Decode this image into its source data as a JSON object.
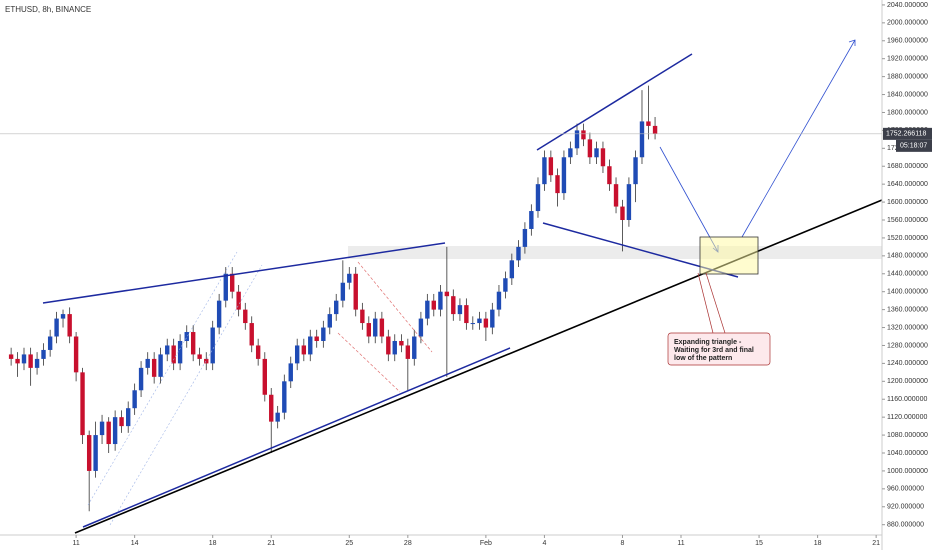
{
  "chart_data": {
    "type": "candlestick",
    "title": "ETHUSD, 8h, BINANCE",
    "x": [
      7.67,
      8,
      8.33,
      8.67,
      9,
      9.33,
      9.67,
      10,
      10.33,
      10.67,
      11,
      11.33,
      11.67,
      12,
      12.33,
      12.67,
      13,
      13.33,
      13.67,
      14,
      14.33,
      14.67,
      15,
      15.33,
      15.67,
      16,
      16.33,
      16.67,
      17,
      17.33,
      17.67,
      18,
      18.33,
      18.67,
      19,
      19.33,
      19.67,
      20,
      20.33,
      20.67,
      21,
      21.33,
      21.67,
      22,
      22.33,
      22.67,
      23,
      23.33,
      23.67,
      24,
      24.33,
      24.67,
      25,
      25.33,
      25.67,
      26,
      26.33,
      26.67,
      27,
      27.33,
      27.67,
      28,
      28.33,
      28.67,
      29,
      29.33,
      29.67,
      30,
      30.33,
      30.67,
      31,
      31.33,
      31.67,
      32,
      32.33,
      32.67,
      33,
      33.33,
      33.67,
      34,
      34.33,
      34.67,
      35,
      35.33,
      35.67,
      36,
      36.33,
      36.67,
      37,
      37.33,
      37.67,
      38,
      38.33,
      38.67,
      39,
      39.33,
      39.67,
      40,
      40.33,
      40.67
    ],
    "open": [
      1260,
      1250,
      1240,
      1260,
      1230,
      1250,
      1270,
      1300,
      1340,
      1350,
      1300,
      1220,
      1080,
      1000,
      1080,
      1110,
      1060,
      1120,
      1100,
      1140,
      1180,
      1230,
      1250,
      1210,
      1260,
      1280,
      1240,
      1290,
      1310,
      1260,
      1250,
      1240,
      1320,
      1380,
      1440,
      1400,
      1360,
      1330,
      1280,
      1250,
      1170,
      1110,
      1130,
      1200,
      1240,
      1280,
      1260,
      1300,
      1290,
      1320,
      1350,
      1380,
      1420,
      1440,
      1360,
      1330,
      1300,
      1340,
      1300,
      1260,
      1290,
      1280,
      1250,
      1300,
      1340,
      1380,
      1360,
      1400,
      1390,
      1350,
      1370,
      1330,
      1330,
      1340,
      1320,
      1360,
      1400,
      1430,
      1470,
      1500,
      1540,
      1580,
      1640,
      1700,
      1660,
      1620,
      1700,
      1720,
      1760,
      1740,
      1700,
      1720,
      1680,
      1640,
      1590,
      1560,
      1640,
      1700,
      1780,
      1770
    ],
    "high": [
      1275,
      1265,
      1275,
      1275,
      1265,
      1285,
      1315,
      1355,
      1360,
      1365,
      1310,
      1230,
      1090,
      1110,
      1125,
      1120,
      1135,
      1135,
      1155,
      1195,
      1245,
      1265,
      1265,
      1275,
      1295,
      1295,
      1305,
      1325,
      1325,
      1275,
      1265,
      1335,
      1395,
      1455,
      1455,
      1415,
      1375,
      1345,
      1295,
      1265,
      1185,
      1145,
      1215,
      1255,
      1295,
      1295,
      1315,
      1315,
      1335,
      1365,
      1395,
      1470,
      1455,
      1455,
      1375,
      1345,
      1355,
      1355,
      1315,
      1305,
      1305,
      1295,
      1315,
      1355,
      1395,
      1395,
      1415,
      1500,
      1405,
      1385,
      1385,
      1345,
      1355,
      1355,
      1375,
      1415,
      1445,
      1485,
      1515,
      1555,
      1595,
      1655,
      1715,
      1715,
      1675,
      1715,
      1735,
      1775,
      1775,
      1755,
      1735,
      1735,
      1695,
      1655,
      1605,
      1655,
      1715,
      1850,
      1860,
      1790
    ],
    "low": [
      1235,
      1210,
      1225,
      1190,
      1215,
      1235,
      1255,
      1285,
      1320,
      1285,
      1200,
      1060,
      910,
      985,
      1060,
      1040,
      1045,
      1085,
      1085,
      1125,
      1165,
      1215,
      1195,
      1195,
      1245,
      1225,
      1225,
      1275,
      1245,
      1235,
      1225,
      1225,
      1305,
      1365,
      1385,
      1345,
      1315,
      1265,
      1235,
      1155,
      1040,
      1095,
      1115,
      1185,
      1225,
      1245,
      1245,
      1275,
      1275,
      1305,
      1335,
      1365,
      1405,
      1345,
      1315,
      1285,
      1285,
      1285,
      1245,
      1245,
      1265,
      1180,
      1235,
      1285,
      1325,
      1345,
      1345,
      1210,
      1335,
      1335,
      1315,
      1315,
      1315,
      1290,
      1305,
      1345,
      1385,
      1415,
      1455,
      1485,
      1525,
      1565,
      1625,
      1645,
      1590,
      1605,
      1685,
      1705,
      1725,
      1685,
      1685,
      1665,
      1625,
      1575,
      1490,
      1545,
      1600,
      1685,
      1740,
      1740
    ],
    "close": [
      1250,
      1240,
      1260,
      1230,
      1250,
      1270,
      1300,
      1340,
      1350,
      1300,
      1220,
      1080,
      1000,
      1080,
      1110,
      1060,
      1120,
      1100,
      1140,
      1180,
      1230,
      1250,
      1210,
      1260,
      1280,
      1240,
      1290,
      1310,
      1260,
      1250,
      1240,
      1320,
      1380,
      1440,
      1400,
      1360,
      1330,
      1280,
      1250,
      1170,
      1110,
      1130,
      1200,
      1240,
      1280,
      1260,
      1300,
      1290,
      1320,
      1350,
      1380,
      1420,
      1440,
      1360,
      1330,
      1300,
      1340,
      1300,
      1260,
      1290,
      1280,
      1250,
      1300,
      1340,
      1380,
      1360,
      1400,
      1390,
      1350,
      1370,
      1330,
      1330,
      1340,
      1320,
      1360,
      1400,
      1430,
      1470,
      1500,
      1540,
      1580,
      1640,
      1700,
      1660,
      1620,
      1700,
      1720,
      1760,
      1740,
      1700,
      1720,
      1680,
      1640,
      1590,
      1560,
      1640,
      1700,
      1780,
      1770,
      1752
    ],
    "up_color": "#1f4bb5",
    "down_color": "#c8102e",
    "ylim": [
      857,
      2051
    ],
    "yticks": [
      {
        "value": 880,
        "label": "880.000000"
      },
      {
        "value": 920,
        "label": "920.000000"
      },
      {
        "value": 960,
        "label": "960.000000"
      },
      {
        "value": 1000,
        "label": "1000.000000"
      },
      {
        "value": 1040,
        "label": "1040.000000"
      },
      {
        "value": 1080,
        "label": "1080.000000"
      },
      {
        "value": 1120,
        "label": "1120.000000"
      },
      {
        "value": 1160,
        "label": "1160.000000"
      },
      {
        "value": 1200,
        "label": "1200.000000"
      },
      {
        "value": 1240,
        "label": "1240.000000"
      },
      {
        "value": 1280,
        "label": "1280.000000"
      },
      {
        "value": 1320,
        "label": "1320.000000"
      },
      {
        "value": 1360,
        "label": "1360.000000"
      },
      {
        "value": 1400,
        "label": "1400.000000"
      },
      {
        "value": 1440,
        "label": "1440.000000"
      },
      {
        "value": 1480,
        "label": "1480.000000"
      },
      {
        "value": 1520,
        "label": "1520.000000"
      },
      {
        "value": 1560,
        "label": "1560.000000"
      },
      {
        "value": 1600,
        "label": "1600.000000"
      },
      {
        "value": 1640,
        "label": "1640.000000"
      },
      {
        "value": 1680,
        "label": "1680.000000"
      },
      {
        "value": 1720,
        "label": "1720.000000"
      },
      {
        "value": 1760,
        "label": "1760.000000"
      },
      {
        "value": 1800,
        "label": "1800.000000"
      },
      {
        "value": 1840,
        "label": "1840.000000"
      },
      {
        "value": 1880,
        "label": "1880.000000"
      },
      {
        "value": 1920,
        "label": "1920.000000"
      },
      {
        "value": 1960,
        "label": "1960.000000"
      },
      {
        "value": 2000,
        "label": "2000.000000"
      },
      {
        "value": 2040,
        "label": "2040.000000"
      }
    ],
    "xlim": [
      7.1,
      52.3
    ],
    "xticks": [
      11,
      14,
      18,
      21,
      25,
      28,
      {
        "value": 32,
        "label": "Feb"
      },
      {
        "value": 35,
        "label": "4"
      },
      {
        "value": 39,
        "label": "8"
      },
      {
        "value": 42,
        "label": "11"
      },
      {
        "value": 46,
        "label": "15"
      },
      {
        "value": 49,
        "label": "18"
      },
      {
        "value": 52,
        "label": "21"
      }
    ],
    "last_price": 1752.266118,
    "countdown": "05:18:07",
    "annotation": [
      "Expanding triangle -",
      "Waiting for 3rd and final",
      "low of the pattern"
    ]
  }
}
